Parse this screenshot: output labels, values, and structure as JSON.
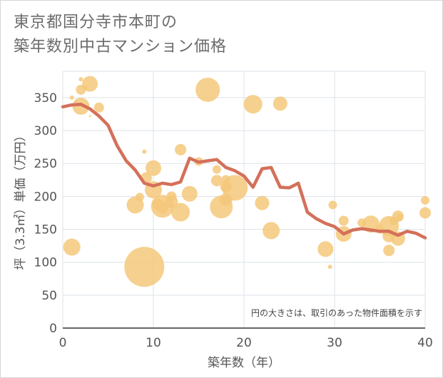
{
  "chart_data": {
    "type": "scatter",
    "title_lines": [
      "東京都国分寺市本町の",
      "築年数別中古マンション価格"
    ],
    "xlabel": "築年数（年）",
    "ylabel": "坪（3.3㎡）単価（万円）",
    "xlim": [
      0,
      40
    ],
    "ylim": [
      0,
      390
    ],
    "xticks": [
      0,
      10,
      20,
      30,
      40
    ],
    "yticks": [
      0,
      50,
      100,
      150,
      200,
      250,
      300,
      350
    ],
    "grid": true,
    "annotation": "円の大きさは、取引のあった物件面積を示す",
    "colors": {
      "bubble": "#f5c87a",
      "line": "#d4705a",
      "grid": "#dde3ea"
    },
    "bubbles": [
      {
        "x": 1,
        "y": 123,
        "s": 12
      },
      {
        "x": 1,
        "y": 350,
        "s": 3
      },
      {
        "x": 1.5,
        "y": 345,
        "s": 2
      },
      {
        "x": 2,
        "y": 337,
        "s": 12
      },
      {
        "x": 2,
        "y": 362,
        "s": 7
      },
      {
        "x": 2,
        "y": 378,
        "s": 3
      },
      {
        "x": 2.5,
        "y": 365,
        "s": 3
      },
      {
        "x": 3,
        "y": 371,
        "s": 11
      },
      {
        "x": 3,
        "y": 322,
        "s": 1.5
      },
      {
        "x": 4,
        "y": 335,
        "s": 7
      },
      {
        "x": 8,
        "y": 187,
        "s": 12
      },
      {
        "x": 8.5,
        "y": 199,
        "s": 6
      },
      {
        "x": 9,
        "y": 93,
        "s": 28
      },
      {
        "x": 9,
        "y": 268,
        "s": 3
      },
      {
        "x": 9.2,
        "y": 228,
        "s": 8
      },
      {
        "x": 10,
        "y": 243,
        "s": 11
      },
      {
        "x": 10,
        "y": 210,
        "s": 12
      },
      {
        "x": 10.5,
        "y": 188,
        "s": 8
      },
      {
        "x": 11,
        "y": 185,
        "s": 16
      },
      {
        "x": 11,
        "y": 182,
        "s": 8
      },
      {
        "x": 12,
        "y": 200,
        "s": 7
      },
      {
        "x": 12,
        "y": 192,
        "s": 9
      },
      {
        "x": 13,
        "y": 271,
        "s": 8
      },
      {
        "x": 13,
        "y": 176,
        "s": 13
      },
      {
        "x": 14,
        "y": 204,
        "s": 11
      },
      {
        "x": 15,
        "y": 253,
        "s": 6
      },
      {
        "x": 16,
        "y": 362,
        "s": 17
      },
      {
        "x": 17,
        "y": 241,
        "s": 6
      },
      {
        "x": 17,
        "y": 224,
        "s": 8
      },
      {
        "x": 17.5,
        "y": 184,
        "s": 16
      },
      {
        "x": 18,
        "y": 226,
        "s": 6
      },
      {
        "x": 18,
        "y": 215,
        "s": 8
      },
      {
        "x": 18,
        "y": 195,
        "s": 9
      },
      {
        "x": 19,
        "y": 213,
        "s": 18
      },
      {
        "x": 21,
        "y": 340,
        "s": 13
      },
      {
        "x": 22,
        "y": 190,
        "s": 10
      },
      {
        "x": 23,
        "y": 148,
        "s": 12
      },
      {
        "x": 24,
        "y": 341,
        "s": 10
      },
      {
        "x": 29,
        "y": 120,
        "s": 11
      },
      {
        "x": 29.5,
        "y": 93,
        "s": 3
      },
      {
        "x": 29.8,
        "y": 187,
        "s": 6
      },
      {
        "x": 31,
        "y": 143,
        "s": 11
      },
      {
        "x": 31,
        "y": 163,
        "s": 7
      },
      {
        "x": 33,
        "y": 160,
        "s": 6
      },
      {
        "x": 34,
        "y": 158,
        "s": 12
      },
      {
        "x": 35,
        "y": 150,
        "s": 6
      },
      {
        "x": 36,
        "y": 155,
        "s": 14
      },
      {
        "x": 36,
        "y": 140,
        "s": 9
      },
      {
        "x": 36,
        "y": 118,
        "s": 8
      },
      {
        "x": 36.5,
        "y": 163,
        "s": 6
      },
      {
        "x": 37,
        "y": 170,
        "s": 8
      },
      {
        "x": 37,
        "y": 136,
        "s": 10
      },
      {
        "x": 37.2,
        "y": 168,
        "s": 5
      },
      {
        "x": 40,
        "y": 194,
        "s": 6
      },
      {
        "x": 40,
        "y": 175,
        "s": 8
      }
    ],
    "series": [
      {
        "x": [
          0,
          1,
          2,
          3,
          4,
          5,
          6,
          7,
          8,
          9,
          10,
          11,
          12,
          13,
          14,
          15,
          16,
          17,
          18,
          19,
          20,
          21,
          22,
          23,
          24,
          25,
          26,
          27,
          28,
          29,
          30,
          31,
          32,
          33,
          34,
          35,
          36,
          37,
          38,
          39,
          40
        ],
        "y": [
          336,
          339,
          340,
          333,
          322,
          308,
          277,
          254,
          240,
          220,
          216,
          220,
          218,
          222,
          258,
          252,
          254,
          256,
          244,
          239,
          231,
          214,
          242,
          244,
          214,
          213,
          220,
          176,
          166,
          159,
          154,
          143,
          149,
          151,
          149,
          147,
          147,
          141,
          147,
          144,
          137
        ]
      }
    ]
  }
}
